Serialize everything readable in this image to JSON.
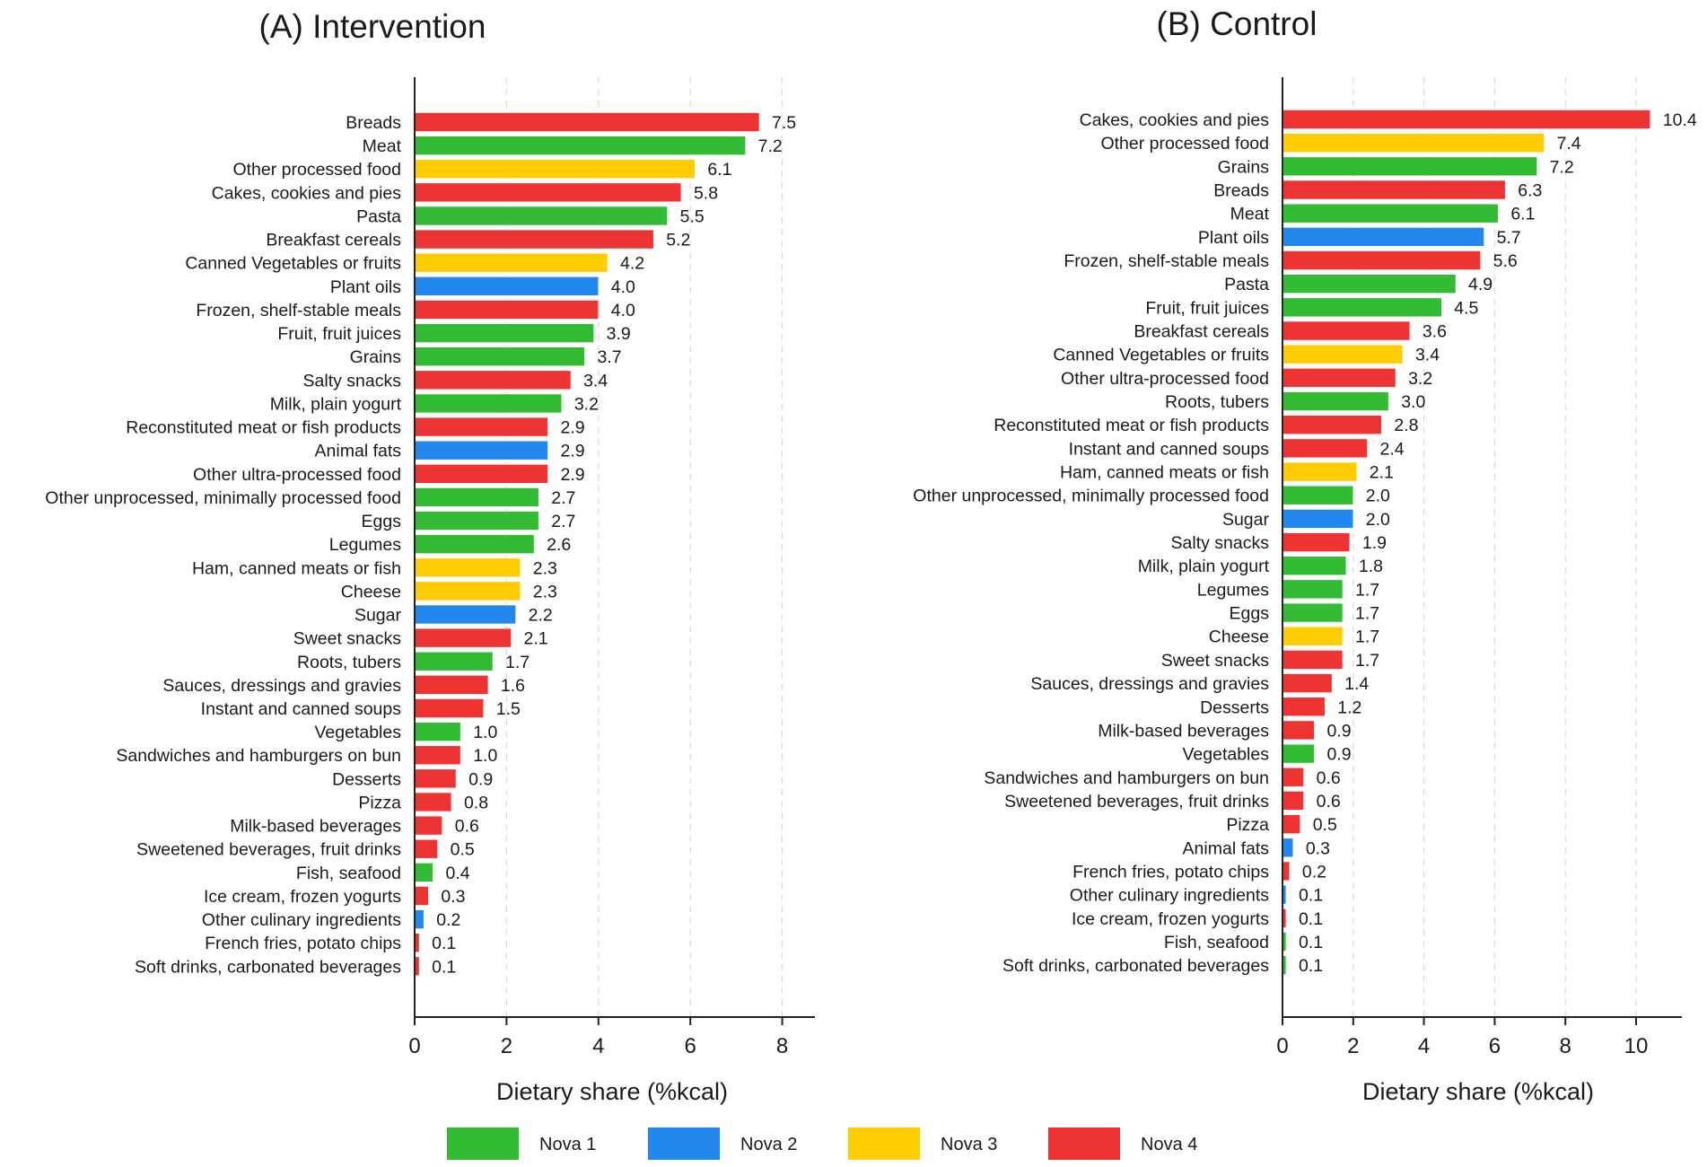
{
  "colors": {
    "nova1": "#33bb33",
    "nova2": "#2288ee",
    "nova3": "#ffcc00",
    "nova4": "#ee3333",
    "grid": "#d9d9d9",
    "axis": "#222222"
  },
  "legend": [
    {
      "label": "Nova 1",
      "group": "nova1"
    },
    {
      "label": "Nova 2",
      "group": "nova2"
    },
    {
      "label": "Nova 3",
      "group": "nova3"
    },
    {
      "label": "Nova 4",
      "group": "nova4"
    }
  ],
  "chart_data": [
    {
      "type": "bar",
      "orientation": "horizontal",
      "title": "(A) Intervention",
      "xlabel": "Dietary share (%kcal)",
      "ylabel": "",
      "xlim": [
        0,
        8.7
      ],
      "xticks": [
        0,
        2,
        4,
        6,
        8
      ],
      "grid": "vertical dashed",
      "categories": [
        "Breads",
        "Meat",
        "Other processed food",
        "Cakes, cookies and pies",
        "Pasta",
        "Breakfast cereals",
        "Canned Vegetables or fruits",
        "Plant oils",
        "Frozen, shelf-stable meals",
        "Fruit, fruit juices",
        "Grains",
        "Salty snacks",
        "Milk, plain yogurt",
        "Reconstituted meat or fish products",
        "Animal fats",
        "Other ultra-processed food",
        "Other unprocessed, minimally processed food",
        "Eggs",
        "Legumes",
        "Ham, canned meats or fish",
        "Cheese",
        "Sugar",
        "Sweet snacks",
        "Roots, tubers",
        "Sauces, dressings and gravies",
        "Instant and canned soups",
        "Vegetables",
        "Sandwiches and hamburgers on bun",
        "Desserts",
        "Pizza",
        "Milk-based beverages",
        "Sweetened beverages, fruit drinks",
        "Fish, seafood",
        "Ice cream, frozen yogurts",
        "Other culinary ingredients",
        "French fries, potato chips",
        "Soft drinks, carbonated beverages"
      ],
      "values": [
        7.5,
        7.2,
        6.1,
        5.8,
        5.5,
        5.2,
        4.2,
        4.0,
        4.0,
        3.9,
        3.7,
        3.4,
        3.2,
        2.9,
        2.9,
        2.9,
        2.7,
        2.7,
        2.6,
        2.3,
        2.3,
        2.2,
        2.1,
        1.7,
        1.6,
        1.5,
        1.0,
        1.0,
        0.9,
        0.8,
        0.6,
        0.5,
        0.4,
        0.3,
        0.2,
        0.1,
        0.1
      ],
      "value_labels": [
        "7.5",
        "7.2",
        "6.1",
        "5.8",
        "5.5",
        "5.2",
        "4.2",
        "4.0",
        "4.0",
        "3.9",
        "3.7",
        "3.4",
        "3.2",
        "2.9",
        "2.9",
        "2.9",
        "2.7",
        "2.7",
        "2.6",
        "2.3",
        "2.3",
        "2.2",
        "2.1",
        "1.7",
        "1.6",
        "1.5",
        "1.0",
        "1.0",
        "0.9",
        "0.8",
        "0.6",
        "0.5",
        "0.4",
        "0.3",
        "0.2",
        "0.1",
        "0.1"
      ],
      "groups": [
        "nova4",
        "nova1",
        "nova3",
        "nova4",
        "nova1",
        "nova4",
        "nova3",
        "nova2",
        "nova4",
        "nova1",
        "nova1",
        "nova4",
        "nova1",
        "nova4",
        "nova2",
        "nova4",
        "nova1",
        "nova1",
        "nova1",
        "nova3",
        "nova3",
        "nova2",
        "nova4",
        "nova1",
        "nova4",
        "nova4",
        "nova1",
        "nova4",
        "nova4",
        "nova4",
        "nova4",
        "nova4",
        "nova1",
        "nova4",
        "nova2",
        "nova4",
        "nova4"
      ]
    },
    {
      "type": "bar",
      "orientation": "horizontal",
      "title": "(B) Control",
      "xlabel": "Dietary share (%kcal)",
      "ylabel": "",
      "xlim": [
        0,
        11.3
      ],
      "xticks": [
        0,
        2,
        4,
        6,
        8,
        10
      ],
      "grid": "vertical dashed",
      "categories": [
        "Cakes, cookies and pies",
        "Other processed food",
        "Grains",
        "Breads",
        "Meat",
        "Plant oils",
        "Frozen, shelf-stable meals",
        "Pasta",
        "Fruit, fruit juices",
        "Breakfast cereals",
        "Canned Vegetables or fruits",
        "Other ultra-processed food",
        "Roots, tubers",
        "Reconstituted meat or fish products",
        "Instant and canned soups",
        "Ham, canned meats or fish",
        "Other unprocessed, minimally processed food",
        "Sugar",
        "Salty snacks",
        "Milk, plain yogurt",
        "Legumes",
        "Eggs",
        "Cheese",
        "Sweet snacks",
        "Sauces, dressings and gravies",
        "Desserts",
        "Milk-based beverages",
        "Vegetables",
        "Sandwiches and hamburgers on bun",
        "Sweetened beverages, fruit drinks",
        "Pizza",
        "Animal fats",
        "French fries, potato chips",
        "Other culinary ingredients",
        "Ice cream, frozen yogurts",
        "Fish, seafood",
        "Soft drinks, carbonated beverages"
      ],
      "values": [
        10.4,
        7.4,
        7.2,
        6.3,
        6.1,
        5.7,
        5.6,
        4.9,
        4.5,
        3.6,
        3.4,
        3.2,
        3.0,
        2.8,
        2.4,
        2.1,
        2.0,
        2.0,
        1.9,
        1.8,
        1.7,
        1.7,
        1.7,
        1.7,
        1.4,
        1.2,
        0.9,
        0.9,
        0.6,
        0.6,
        0.5,
        0.3,
        0.2,
        0.1,
        0.1,
        0.1,
        0.1
      ],
      "value_labels": [
        "10.4",
        "7.4",
        "7.2",
        "6.3",
        "6.1",
        "5.7",
        "5.6",
        "4.9",
        "4.5",
        "3.6",
        "3.4",
        "3.2",
        "3.0",
        "2.8",
        "2.4",
        "2.1",
        "2.0",
        "2.0",
        "1.9",
        "1.8",
        "1.7",
        "1.7",
        "1.7",
        "1.7",
        "1.4",
        "1.2",
        "0.9",
        "0.9",
        "0.6",
        "0.6",
        "0.5",
        "0.3",
        "0.2",
        "0.1",
        "0.1",
        "0.1",
        "0.1"
      ],
      "groups": [
        "nova4",
        "nova3",
        "nova1",
        "nova4",
        "nova1",
        "nova2",
        "nova4",
        "nova1",
        "nova1",
        "nova4",
        "nova3",
        "nova4",
        "nova1",
        "nova4",
        "nova4",
        "nova3",
        "nova1",
        "nova2",
        "nova4",
        "nova1",
        "nova1",
        "nova1",
        "nova3",
        "nova4",
        "nova4",
        "nova4",
        "nova4",
        "nova1",
        "nova4",
        "nova4",
        "nova4",
        "nova2",
        "nova4",
        "nova2",
        "nova4",
        "nova1",
        "nova1"
      ]
    }
  ]
}
